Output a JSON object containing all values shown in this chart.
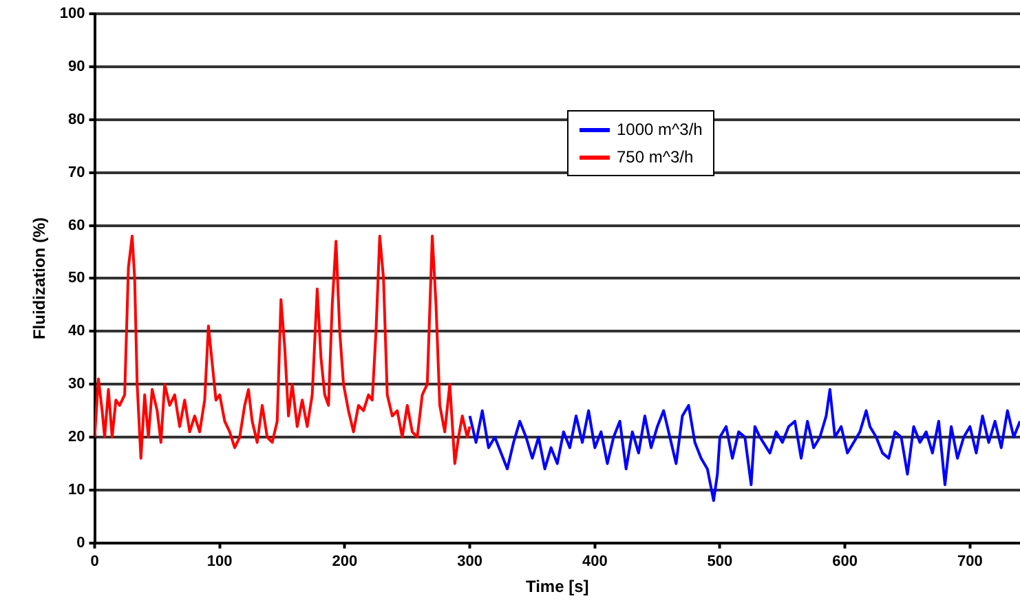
{
  "chart_data": {
    "type": "line",
    "xlabel": "Time [s]",
    "ylabel": "Fluidization (%)",
    "xlim": [
      0,
      740
    ],
    "xticks": [
      0,
      100,
      200,
      300,
      400,
      500,
      600,
      700
    ],
    "ylim": [
      0,
      100
    ],
    "yticks": [
      0,
      10,
      20,
      30,
      40,
      50,
      60,
      70,
      80,
      90,
      100
    ],
    "grid": "y",
    "legend": "top right",
    "marker": "none",
    "line_style": "solid",
    "series": [
      {
        "name": "1000 m^3/h",
        "color": "#0000ff",
        "x": [
          300,
          305,
          310,
          315,
          320,
          325,
          330,
          335,
          340,
          345,
          350,
          355,
          360,
          365,
          370,
          375,
          380,
          385,
          390,
          395,
          400,
          405,
          410,
          415,
          420,
          425,
          430,
          435,
          440,
          445,
          450,
          455,
          460,
          465,
          470,
          475,
          480,
          485,
          490,
          495,
          498,
          500,
          505,
          510,
          515,
          520,
          525,
          528,
          532,
          540,
          545,
          550,
          555,
          560,
          565,
          570,
          575,
          580,
          585,
          588,
          592,
          597,
          602,
          607,
          612,
          617,
          620,
          625,
          630,
          635,
          640,
          645,
          650,
          655,
          660,
          665,
          670,
          675,
          680,
          685,
          690,
          695,
          700,
          705,
          710,
          715,
          720,
          725,
          730,
          735,
          740
        ],
        "values": [
          24,
          19,
          25,
          18,
          20,
          17,
          14,
          19,
          23,
          20,
          16,
          20,
          14,
          18,
          15,
          21,
          18,
          24,
          19,
          25,
          18,
          21,
          15,
          20,
          23,
          14,
          21,
          17,
          24,
          18,
          22,
          25,
          20,
          15,
          24,
          26,
          19,
          16,
          14,
          8,
          13,
          20,
          22,
          16,
          21,
          20,
          11,
          22,
          20,
          17,
          21,
          19,
          22,
          23,
          16,
          23,
          18,
          20,
          24,
          29,
          20,
          22,
          17,
          19,
          21,
          25,
          22,
          20,
          17,
          16,
          21,
          20,
          13,
          22,
          19,
          21,
          17,
          23,
          11,
          22,
          16,
          20,
          22,
          17,
          24,
          19,
          23,
          18,
          25,
          20,
          23
        ]
      },
      {
        "name": "750 m^3/h",
        "color": "#ff0000",
        "x": [
          0,
          3,
          6,
          8,
          11,
          14,
          17,
          20,
          24,
          27,
          30,
          32,
          34,
          37,
          40,
          43,
          46,
          50,
          53,
          56,
          60,
          64,
          68,
          72,
          76,
          80,
          84,
          88,
          91,
          94,
          97,
          100,
          104,
          108,
          112,
          116,
          120,
          123,
          126,
          130,
          134,
          138,
          142,
          146,
          149,
          152,
          155,
          158,
          162,
          166,
          170,
          174,
          178,
          181,
          184,
          187,
          190,
          193,
          196,
          199,
          203,
          207,
          211,
          215,
          219,
          222,
          225,
          228,
          231,
          234,
          238,
          242,
          246,
          250,
          254,
          258,
          262,
          266,
          270,
          273,
          276,
          280,
          284,
          288,
          291,
          294,
          298,
          300
        ],
        "values": [
          20,
          31,
          25,
          20,
          29,
          20,
          27,
          26,
          28,
          52,
          58,
          50,
          30,
          16,
          28,
          20,
          29,
          25,
          19,
          30,
          26,
          28,
          22,
          27,
          21,
          24,
          21,
          27,
          41,
          34,
          27,
          28,
          23,
          21,
          18,
          20,
          26,
          29,
          23,
          19,
          26,
          20,
          19,
          23,
          46,
          37,
          24,
          30,
          22,
          27,
          22,
          28,
          48,
          35,
          28,
          26,
          45,
          57,
          40,
          30,
          25,
          21,
          26,
          25,
          28,
          27,
          40,
          58,
          50,
          28,
          24,
          25,
          20,
          26,
          21,
          20,
          28,
          30,
          58,
          45,
          26,
          21,
          30,
          15,
          20,
          24,
          20,
          22
        ]
      }
    ]
  }
}
